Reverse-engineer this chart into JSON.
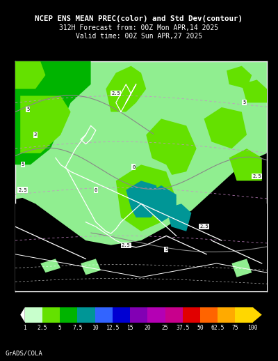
{
  "title_line1": "NCEP ENS MEAN PREC(color) and Std Dev(contour)",
  "title_line2": "312H Forecast from: 00Z Mon APR,14 2025",
  "title_line3": "Valid time: 00Z Sun APR,27 2025",
  "background_color": "#000000",
  "title_color": "#ffffff",
  "colorbar_labels": [
    "1",
    "2.5",
    "5",
    "7.5",
    "10",
    "12.5",
    "15",
    "20",
    "25",
    "37.5",
    "50",
    "62.5",
    "75",
    "100"
  ],
  "colorbar_colors": [
    "#c8ffcc",
    "#64e100",
    "#00b400",
    "#009696",
    "#3264ff",
    "#0000d2",
    "#8200b4",
    "#b400b4",
    "#c8008c",
    "#e10000",
    "#ff6400",
    "#ffaa00",
    "#ffd700"
  ],
  "credit_text": "GrADS/COLA",
  "credit_color": "#ffffff",
  "light_green": "#90ee90",
  "mid_green": "#64e100",
  "dark_green": "#00b400",
  "teal": "#009696",
  "map_frame_color": "#ffffff"
}
